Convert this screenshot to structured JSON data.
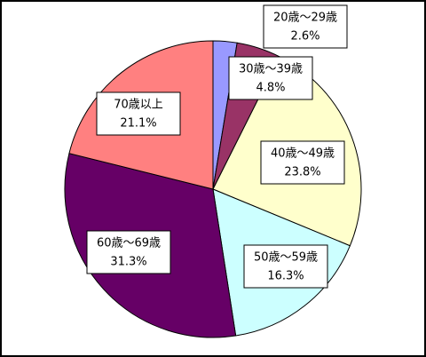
{
  "chart_data": {
    "type": "pie",
    "categories": [
      "20歳～29歳",
      "30歳～39歳",
      "40歳～49歳",
      "50歳～59歳",
      "60歳～69歳",
      "70歳以上"
    ],
    "values": [
      2.6,
      4.8,
      23.8,
      16.3,
      31.3,
      21.1
    ],
    "value_labels": [
      "2.6%",
      "4.8%",
      "23.8%",
      "16.3%",
      "31.3%",
      "21.1%"
    ],
    "colors": [
      "#9999ff",
      "#993366",
      "#ffffcc",
      "#ccffff",
      "#660066",
      "#ff8080"
    ]
  }
}
